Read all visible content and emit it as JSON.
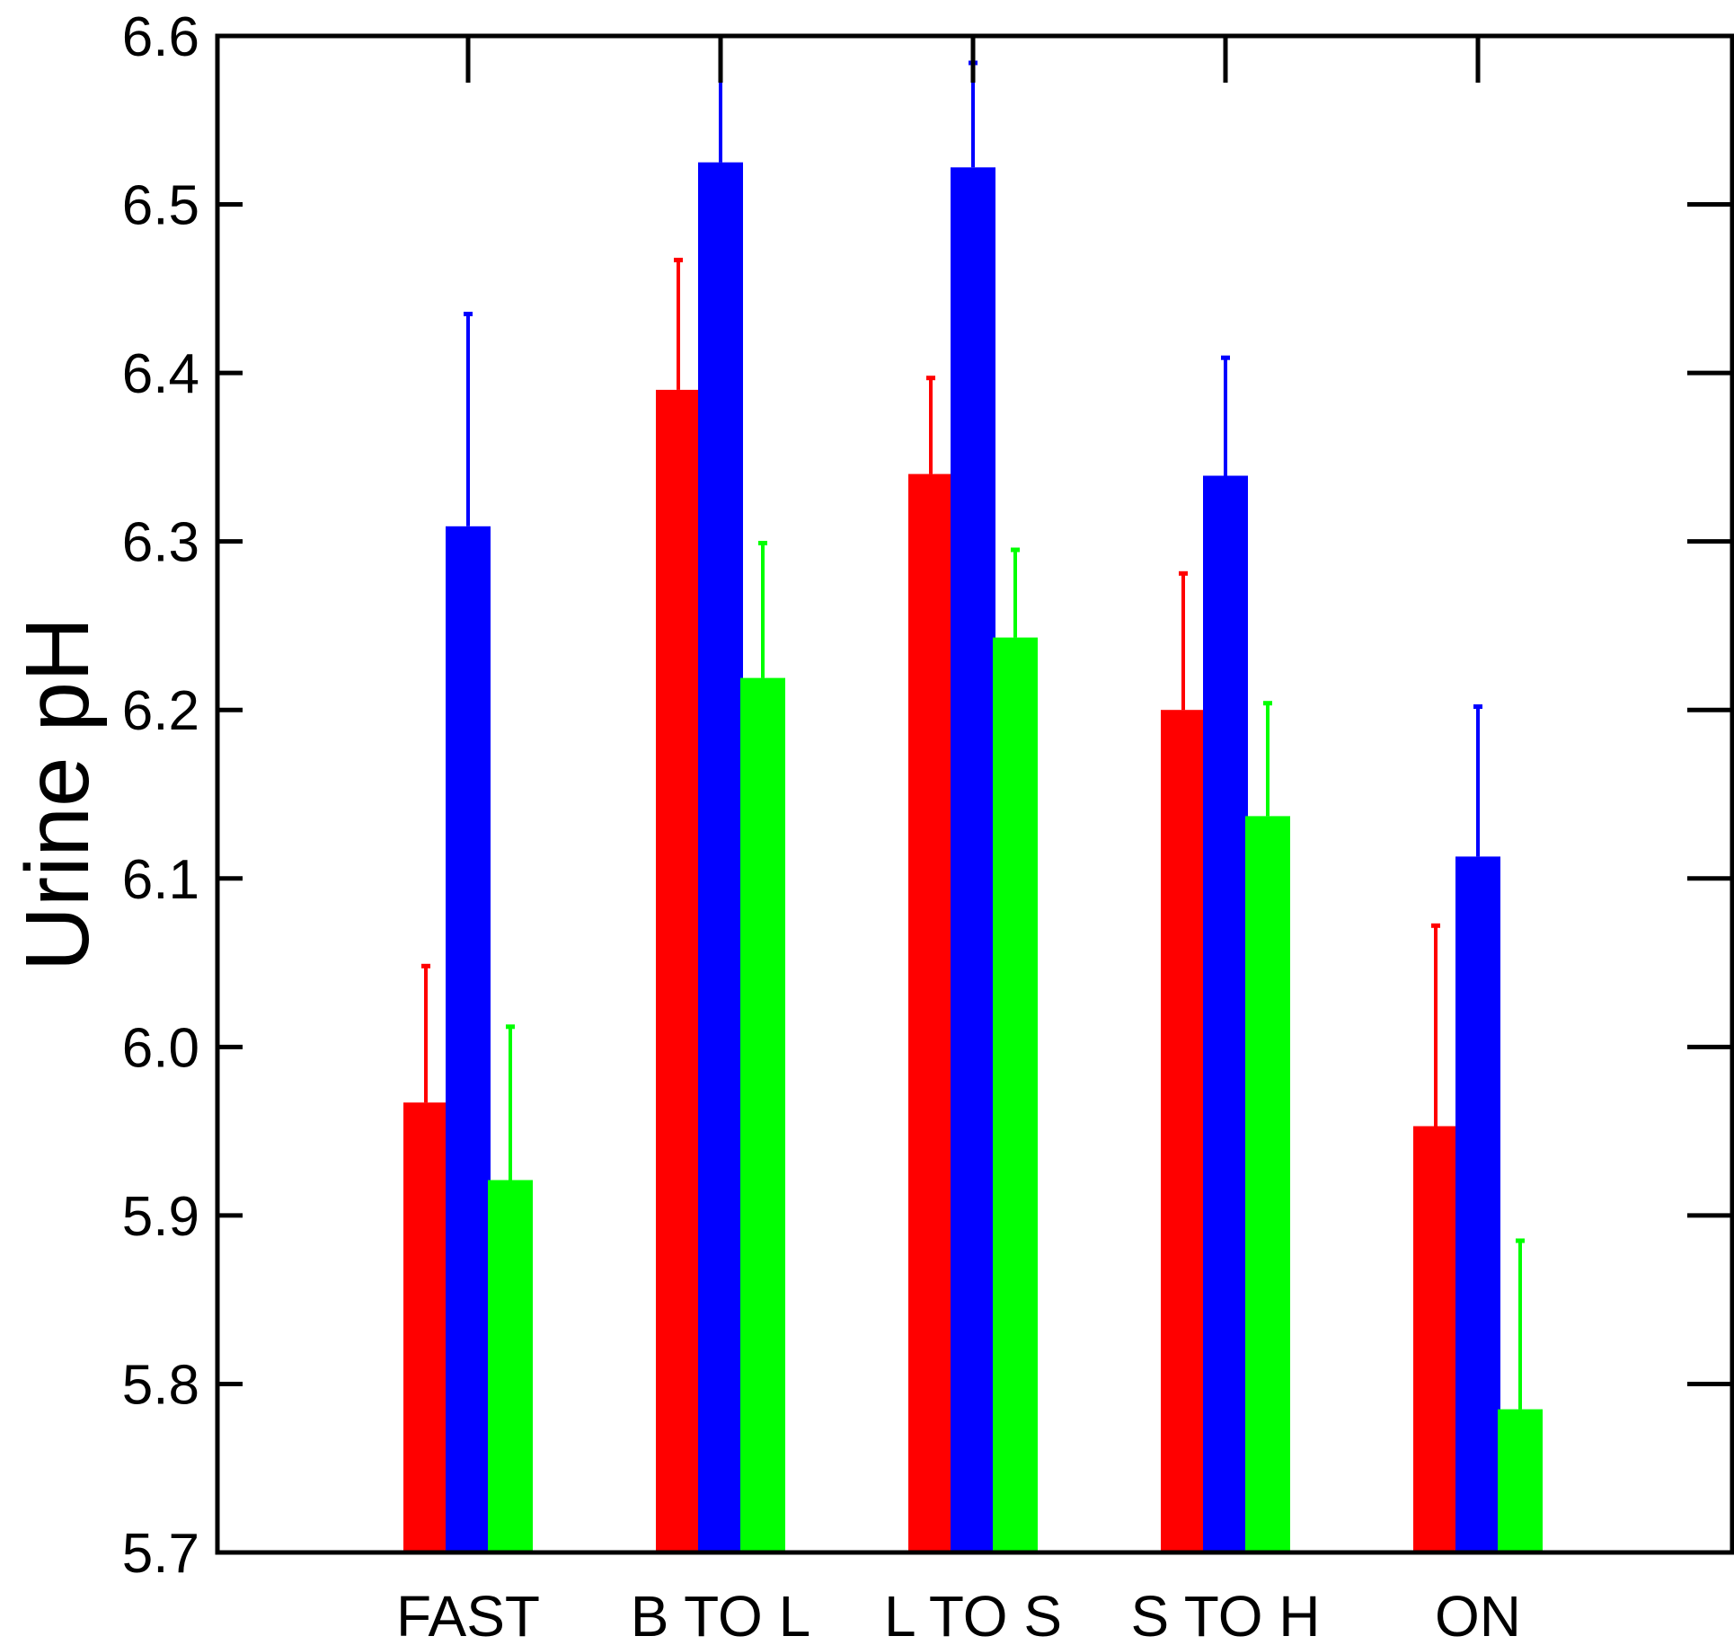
{
  "chart_data": {
    "type": "bar",
    "title": "",
    "xlabel": "",
    "ylabel": "Urine pH",
    "ylim": [
      5.7,
      6.6
    ],
    "yticks": [
      "5.7",
      "5.8",
      "5.9",
      "6.0",
      "6.1",
      "6.2",
      "6.3",
      "6.4",
      "6.5",
      "6.6"
    ],
    "categories": [
      "FAST",
      "B TO L",
      "L TO S",
      "S TO H",
      "ON"
    ],
    "grid": false,
    "legend": "none",
    "error_bars": "upper",
    "series": [
      {
        "color": "#ff0000",
        "values": [
          5.967,
          6.39,
          6.34,
          6.2,
          5.953
        ],
        "error_upper": [
          6.048,
          6.467,
          6.397,
          6.281,
          6.072
        ]
      },
      {
        "color": "#0000ff",
        "values": [
          6.309,
          6.525,
          6.522,
          6.339,
          6.113
        ],
        "error_upper": [
          6.435,
          6.6,
          6.584,
          6.409,
          6.202
        ]
      },
      {
        "color": "#00ff00",
        "values": [
          5.921,
          6.219,
          6.243,
          6.137,
          5.785
        ],
        "error_upper": [
          6.012,
          6.299,
          6.295,
          6.204,
          5.885
        ]
      }
    ]
  }
}
